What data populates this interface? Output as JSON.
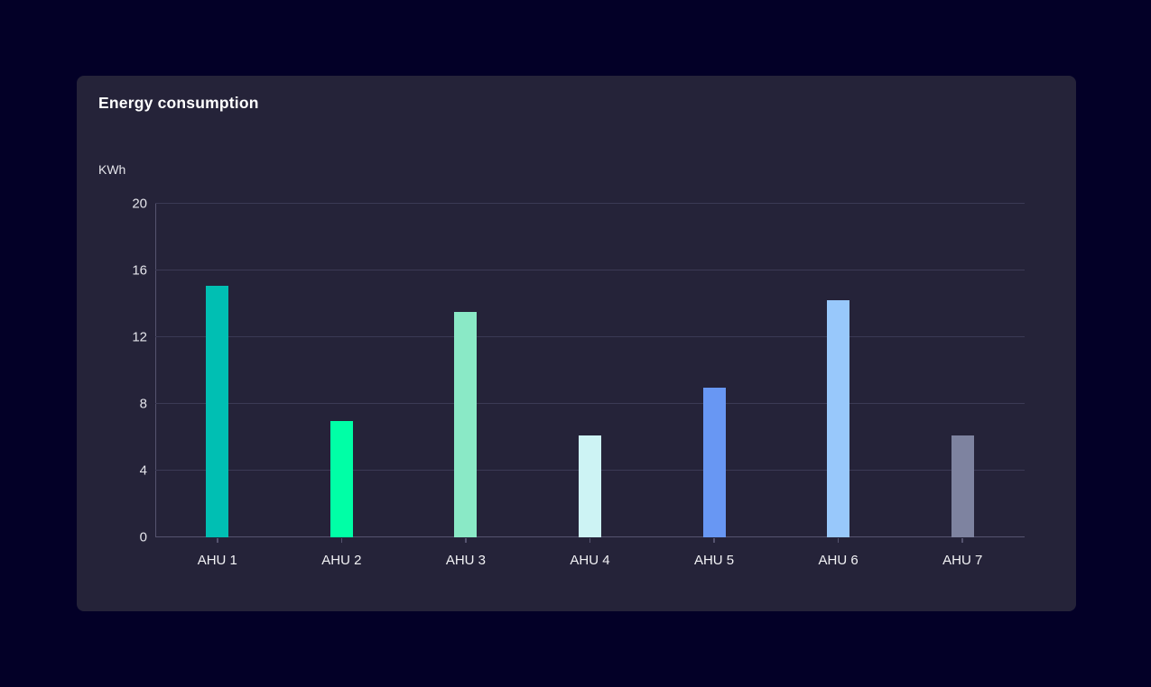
{
  "page": {
    "background": "#030027"
  },
  "card": {
    "title": "Energy consumption",
    "unit_label": "KWh",
    "background": "#252339"
  },
  "chart_data": {
    "type": "bar",
    "title": "Energy consumption",
    "ylabel": "KWh",
    "xlabel": "",
    "categories": [
      "AHU 1",
      "AHU 2",
      "AHU 3",
      "AHU 4",
      "AHU 5",
      "AHU 6",
      "AHU 7"
    ],
    "values": [
      15.1,
      7.0,
      13.5,
      6.1,
      9.0,
      14.2,
      6.1
    ],
    "bar_colors": [
      "#00BFB3",
      "#00FFA6",
      "#8AE9C6",
      "#CDF3F4",
      "#6897F3",
      "#98C8FB",
      "#7E83A0"
    ],
    "ylim": [
      0,
      20
    ],
    "yticks": [
      0,
      4,
      8,
      12,
      16,
      20
    ],
    "grid": true,
    "legend": "none",
    "colors": {
      "gridline": "#3B3A55",
      "axis": "#56546F",
      "tick_label": "#E4E4EA",
      "category_label": "#F2F2F5",
      "title": "#FFFFFF"
    }
  }
}
